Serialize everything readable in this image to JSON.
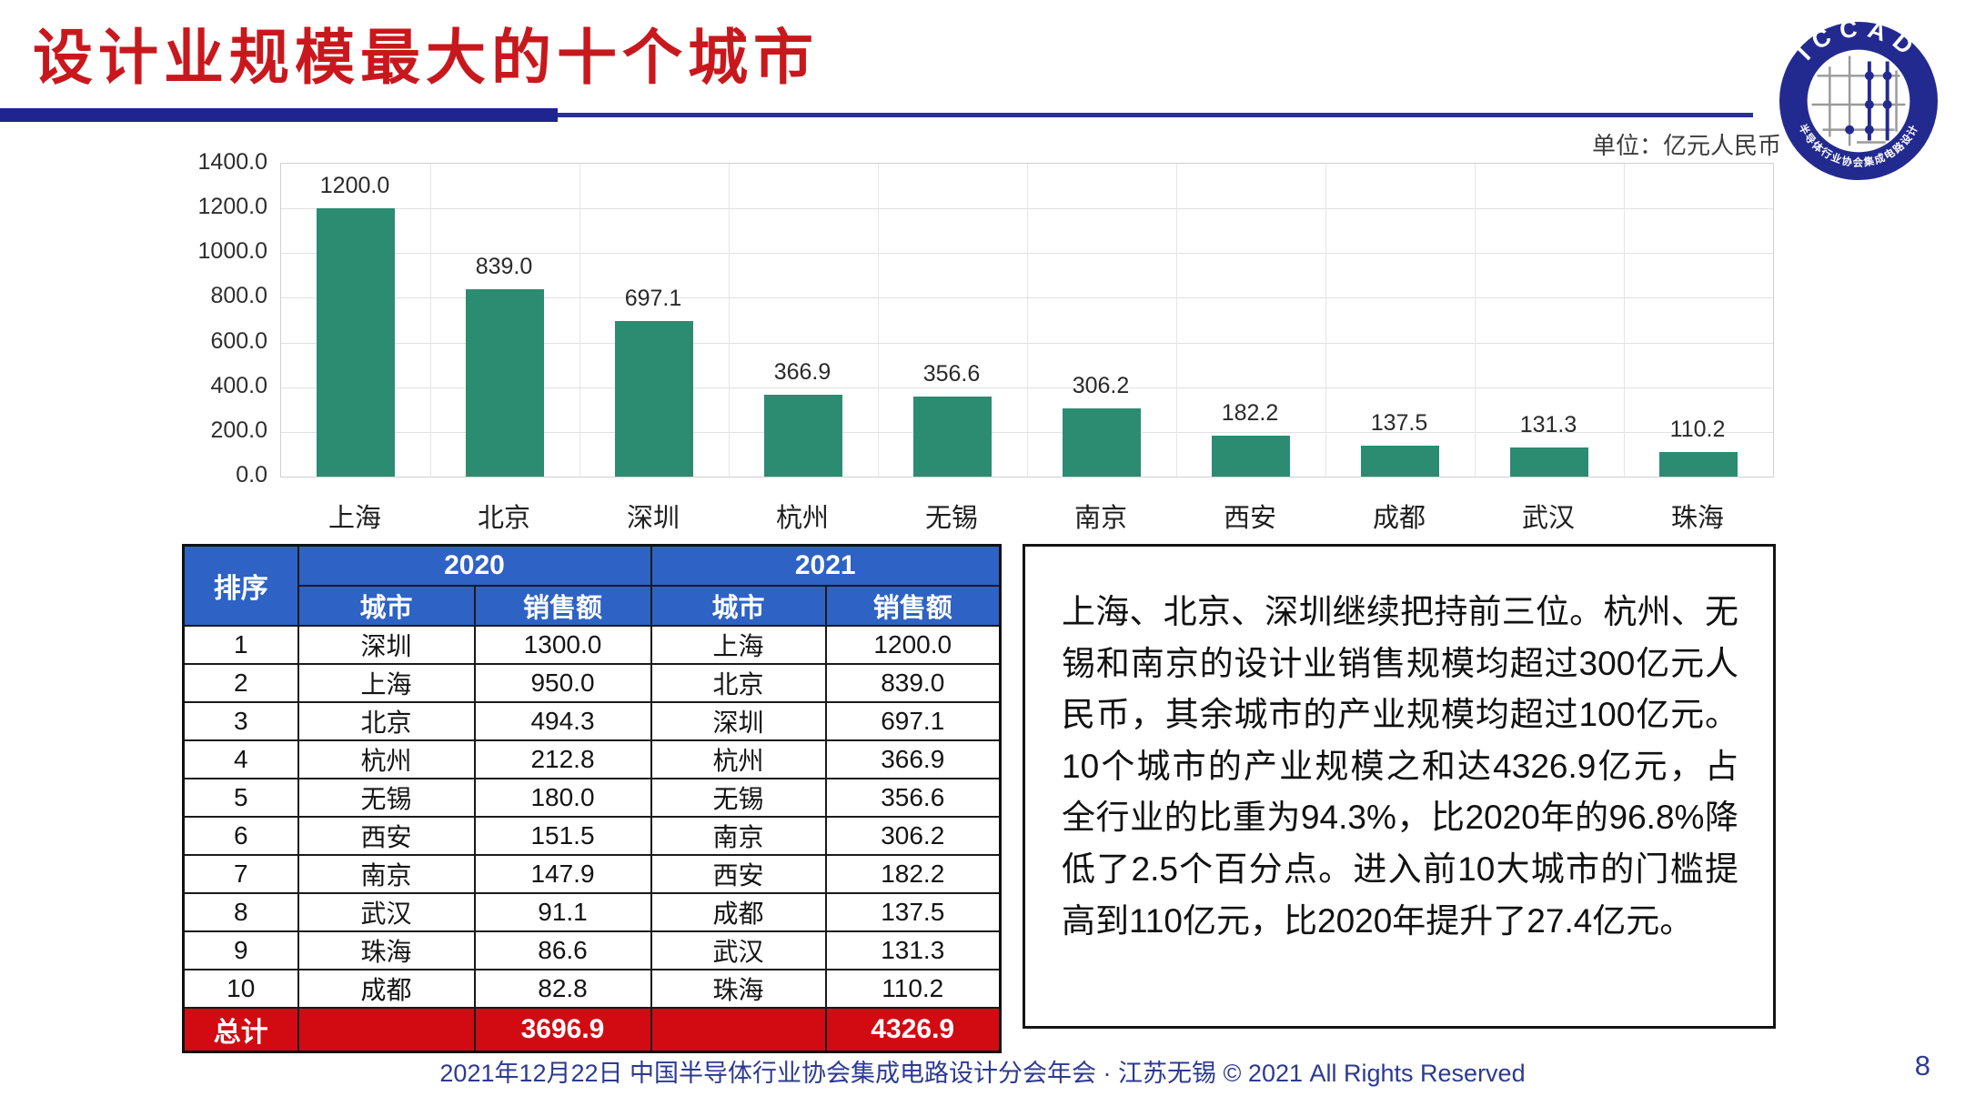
{
  "header": {
    "title": "设计业规模最大的十个城市"
  },
  "logo": {
    "acronym": "ICCAD",
    "ring_text": "中国半导体行业协会集成电路设计分会"
  },
  "chart_data": {
    "type": "bar",
    "title": "",
    "unit_label": "单位：亿元人民币",
    "categories": [
      "上海",
      "北京",
      "深圳",
      "杭州",
      "无锡",
      "南京",
      "西安",
      "成都",
      "武汉",
      "珠海"
    ],
    "values": [
      1200.0,
      839.0,
      697.1,
      366.9,
      356.6,
      306.2,
      182.2,
      137.5,
      131.3,
      110.2
    ],
    "value_labels": [
      "1200.0",
      "839.0",
      "697.1",
      "366.9",
      "356.6",
      "306.2",
      "182.2",
      "137.5",
      "131.3",
      "110.2"
    ],
    "ylim": [
      0,
      1400
    ],
    "ytick_labels": [
      "0.0",
      "200.0",
      "400.0",
      "600.0",
      "800.0",
      "1000.0",
      "1200.0",
      "1400.0"
    ],
    "grid": true,
    "legend": "none",
    "bar_color": "#2B8C72"
  },
  "table": {
    "header": {
      "rank": "排序",
      "year_2020": "2020",
      "year_2021": "2021",
      "city": "城市",
      "sales": "销售额"
    },
    "rows": [
      [
        "1",
        "深圳",
        "1300.0",
        "上海",
        "1200.0"
      ],
      [
        "2",
        "上海",
        "950.0",
        "北京",
        "839.0"
      ],
      [
        "3",
        "北京",
        "494.3",
        "深圳",
        "697.1"
      ],
      [
        "4",
        "杭州",
        "212.8",
        "杭州",
        "366.9"
      ],
      [
        "5",
        "无锡",
        "180.0",
        "无锡",
        "356.6"
      ],
      [
        "6",
        "西安",
        "151.5",
        "南京",
        "306.2"
      ],
      [
        "7",
        "南京",
        "147.9",
        "西安",
        "182.2"
      ],
      [
        "8",
        "武汉",
        "91.1",
        "成都",
        "137.5"
      ],
      [
        "9",
        "珠海",
        "86.6",
        "武汉",
        "131.3"
      ],
      [
        "10",
        "成都",
        "82.8",
        "珠海",
        "110.2"
      ]
    ],
    "total": {
      "label": "总计",
      "sales_2020": "3696.9",
      "sales_2021": "4326.9"
    }
  },
  "analysis": {
    "text": "上海、北京、深圳继续把持前三位。杭州、无锡和南京的设计业销售规模均超过300亿元人民币，其余城市的产业规模均超过100亿元。10个城市的产业规模之和达4326.9亿元，占全行业的比重为94.3%，比2020年的96.8%降低了2.5个百分点。进入前10大城市的门槛提高到110亿元，比2020年提升了27.4亿元。"
  },
  "footer": {
    "text": "2021年12月22日 中国半导体行业协会集成电路设计分会年会 · 江苏无锡 © 2021 All Rights Reserved",
    "page_number": "8"
  },
  "colors": {
    "title_red": "#C9181D",
    "rule_navy": "#1F2490",
    "bar_teal": "#2B8C72",
    "table_header_blue": "#2E62C4",
    "total_row_red": "#D20A12",
    "footer_navy": "#2C3A92"
  }
}
